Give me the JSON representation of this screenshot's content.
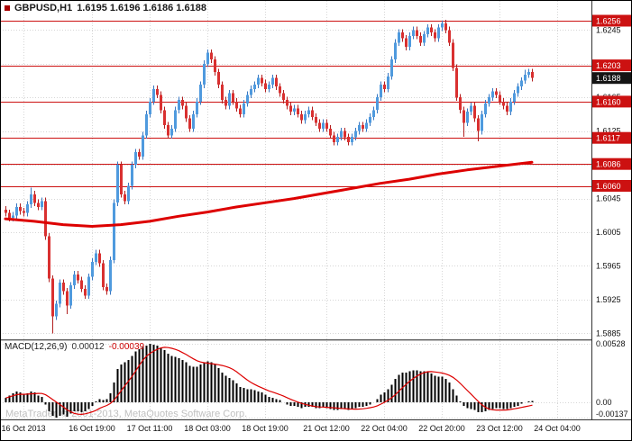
{
  "header": {
    "symbol": "GBPUSD,H1",
    "ohlc": "1.6195 1.6196 1.6186 1.6188"
  },
  "watermark": "MetaTrader, © 2001-2013, MetaQuotes Software Corp.",
  "macd_label": {
    "name": "MACD(12,26,9)",
    "main": "0.00012",
    "signal": "-0.00039"
  },
  "price_axis": {
    "labels": [
      "1.6245",
      "1.6205",
      "1.6165",
      "1.6125",
      "1.6085",
      "1.6045",
      "1.6005",
      "1.5965",
      "1.5925",
      "1.5885"
    ],
    "tags": [
      {
        "text": "1.6256",
        "price": 1.6256,
        "type": "level"
      },
      {
        "text": "1.6203",
        "price": 1.6203,
        "type": "level"
      },
      {
        "text": "1.6160",
        "price": 1.616,
        "type": "level"
      },
      {
        "text": "1.6117",
        "price": 1.6117,
        "type": "level"
      },
      {
        "text": "1.6086",
        "price": 1.6086,
        "type": "level"
      },
      {
        "text": "1.6060",
        "price": 1.606,
        "type": "level"
      },
      {
        "text": "1.6188",
        "price": 1.6188,
        "type": "current"
      }
    ]
  },
  "time_axis": {
    "labels": [
      {
        "text": "16 Oct 2013",
        "bar": 5
      },
      {
        "text": "16 Oct 19:00",
        "bar": 24
      },
      {
        "text": "17 Oct 11:00",
        "bar": 40
      },
      {
        "text": "18 Oct 03:00",
        "bar": 56
      },
      {
        "text": "18 Oct 19:00",
        "bar": 72
      },
      {
        "text": "21 Oct 12:00",
        "bar": 89
      },
      {
        "text": "22 Oct 04:00",
        "bar": 105
      },
      {
        "text": "22 Oct 20:00",
        "bar": 121
      },
      {
        "text": "23 Oct 12:00",
        "bar": 137
      },
      {
        "text": "24 Oct 04:00",
        "bar": 153
      }
    ]
  },
  "macd_axis": {
    "labels": [
      {
        "text": "0.00528",
        "value": 0.00528
      },
      {
        "text": "0.00",
        "value": 0
      },
      {
        "text": "-0.00137",
        "value": -0.00137
      }
    ]
  },
  "colors": {
    "bull": "#4f9ade",
    "bull_wick": "#3a78c2",
    "bear": "#d93030",
    "bear_wick": "#b22020",
    "ma_line": "#dd0000",
    "level_line": "#cc1111",
    "grid": "#d6d6d6",
    "tag_level_bg": "#cc1111",
    "tag_current_bg": "#151515",
    "macd_bar": "#000000",
    "macd_signal": "#dd0000"
  },
  "chart_data": [
    {
      "type": "candlestick",
      "title": "GBPUSD H1",
      "ohlc_current": {
        "open": 1.6195,
        "high": 1.6196,
        "low": 1.6186,
        "close": 1.6188
      },
      "first_open": 1.6032,
      "default_wick": 0.0004,
      "closes": [
        1.6028,
        1.6022,
        1.6025,
        1.6035,
        1.603,
        1.6028,
        1.6038,
        1.605,
        1.604,
        1.6035,
        1.6042,
        1.6,
        1.595,
        1.5905,
        1.592,
        1.5945,
        1.5935,
        1.5918,
        1.5942,
        1.5955,
        1.5948,
        1.5938,
        1.593,
        1.5952,
        1.597,
        1.598,
        1.5968,
        1.594,
        1.5935,
        1.5972,
        1.604,
        1.6085,
        1.605,
        1.6042,
        1.606,
        1.6085,
        1.61,
        1.6095,
        1.612,
        1.6145,
        1.616,
        1.6175,
        1.6168,
        1.615,
        1.6132,
        1.612,
        1.6128,
        1.615,
        1.6162,
        1.6155,
        1.614,
        1.6128,
        1.6145,
        1.616,
        1.618,
        1.6205,
        1.6218,
        1.621,
        1.6195,
        1.618,
        1.6162,
        1.6155,
        1.617,
        1.616,
        1.6152,
        1.6145,
        1.6158,
        1.6168,
        1.6175,
        1.618,
        1.6188,
        1.6182,
        1.6175,
        1.618,
        1.6188,
        1.6178,
        1.617,
        1.6162,
        1.6155,
        1.6148,
        1.6152,
        1.6145,
        1.6138,
        1.6145,
        1.615,
        1.6142,
        1.6135,
        1.6128,
        1.6135,
        1.6128,
        1.612,
        1.6112,
        1.6118,
        1.6125,
        1.6118,
        1.6112,
        1.6118,
        1.6125,
        1.6132,
        1.6128,
        1.6135,
        1.6142,
        1.615,
        1.6165,
        1.618,
        1.6175,
        1.619,
        1.621,
        1.623,
        1.6242,
        1.6235,
        1.6225,
        1.6238,
        1.6245,
        1.6238,
        1.623,
        1.624,
        1.6248,
        1.6242,
        1.6235,
        1.6248,
        1.6253,
        1.6245,
        1.623,
        1.62,
        1.6165,
        1.615,
        1.6135,
        1.6148,
        1.6155,
        1.614,
        1.6125,
        1.6145,
        1.6158,
        1.6165,
        1.6172,
        1.6168,
        1.616,
        1.6155,
        1.6148,
        1.616,
        1.617,
        1.6178,
        1.6185,
        1.6192,
        1.6195,
        1.6188
      ],
      "wick_overrides": {
        "7": {
          "high": 1.6058
        },
        "13": {
          "low": 1.5885
        },
        "17": {
          "low": 1.5908
        },
        "56": {
          "high": 1.6222
        },
        "109": {
          "high": 1.6246
        },
        "121": {
          "high": 1.6256
        },
        "127": {
          "low": 1.6118
        },
        "131": {
          "low": 1.6113
        },
        "144": {
          "high": 1.6198
        }
      },
      "horizontal_lines": [
        1.6256,
        1.6203,
        1.616,
        1.6117,
        1.6086,
        1.606
      ],
      "moving_average": {
        "points": [
          [
            0,
            1.6021
          ],
          [
            8,
            1.6018
          ],
          [
            16,
            1.6014
          ],
          [
            24,
            1.6012
          ],
          [
            32,
            1.6014
          ],
          [
            40,
            1.6018
          ],
          [
            48,
            1.6024
          ],
          [
            56,
            1.6029
          ],
          [
            64,
            1.6035
          ],
          [
            72,
            1.604
          ],
          [
            80,
            1.6045
          ],
          [
            88,
            1.6051
          ],
          [
            96,
            1.6057
          ],
          [
            104,
            1.6063
          ],
          [
            112,
            1.6068
          ],
          [
            120,
            1.6074
          ],
          [
            128,
            1.6079
          ],
          [
            136,
            1.6083
          ],
          [
            146,
            1.6088
          ]
        ]
      },
      "ylim": [
        1.5885,
        1.6263
      ]
    },
    {
      "type": "bar",
      "name": "MACD(12,26,9)",
      "values": [
        0.0004,
        0.0006,
        0.0008,
        0.001,
        0.0009,
        0.0007,
        0.0008,
        0.001,
        0.0009,
        0.0006,
        0.0005,
        -0.0002,
        -0.0008,
        -0.0012,
        -0.00137,
        -0.0012,
        -0.0011,
        -0.0013,
        -0.001,
        -0.0008,
        -0.0008,
        -0.0009,
        -0.0008,
        -0.0006,
        -0.0003,
        0.0001,
        0.0003,
        0.0002,
        0.0003,
        0.0008,
        0.0018,
        0.003,
        0.0034,
        0.0036,
        0.0038,
        0.0042,
        0.0046,
        0.0048,
        0.005,
        0.0051,
        0.00528,
        0.0052,
        0.0051,
        0.0049,
        0.0047,
        0.0044,
        0.0042,
        0.0041,
        0.004,
        0.0038,
        0.0036,
        0.0033,
        0.0032,
        0.0032,
        0.0034,
        0.0036,
        0.0037,
        0.0036,
        0.0034,
        0.0031,
        0.0027,
        0.0024,
        0.0022,
        0.002,
        0.0017,
        0.0014,
        0.0013,
        0.0012,
        0.0012,
        0.0011,
        0.001,
        0.0009,
        0.0007,
        0.0005,
        0.0004,
        0.0003,
        0.0002,
        0.0,
        -0.0002,
        -0.0003,
        -0.0003,
        -0.0004,
        -0.0005,
        -0.0004,
        -0.0004,
        -0.0004,
        -0.0005,
        -0.0005,
        -0.0004,
        -0.0005,
        -0.0006,
        -0.0007,
        -0.0007,
        -0.0006,
        -0.0006,
        -0.0007,
        -0.0006,
        -0.0005,
        -0.0004,
        -0.0004,
        -0.0003,
        -0.0002,
        0.0,
        0.0003,
        0.0007,
        0.0009,
        0.0012,
        0.0016,
        0.0021,
        0.0025,
        0.0027,
        0.0027,
        0.0028,
        0.0029,
        0.0029,
        0.0028,
        0.0028,
        0.0028,
        0.0026,
        0.0024,
        0.0023,
        0.0023,
        0.0021,
        0.0018,
        0.0012,
        0.0006,
        0.0001,
        -0.0003,
        -0.0005,
        -0.0006,
        -0.0007,
        -0.0009,
        -0.0009,
        -0.0008,
        -0.0007,
        -0.0006,
        -0.0005,
        -0.0005,
        -0.0006,
        -0.0006,
        -0.0005,
        -0.0004,
        -0.0003,
        -0.0001,
        0.0,
        0.0001,
        0.00012
      ],
      "signal_rule": "SMA(9) of values",
      "ylim": [
        -0.00137,
        0.00528
      ]
    }
  ]
}
